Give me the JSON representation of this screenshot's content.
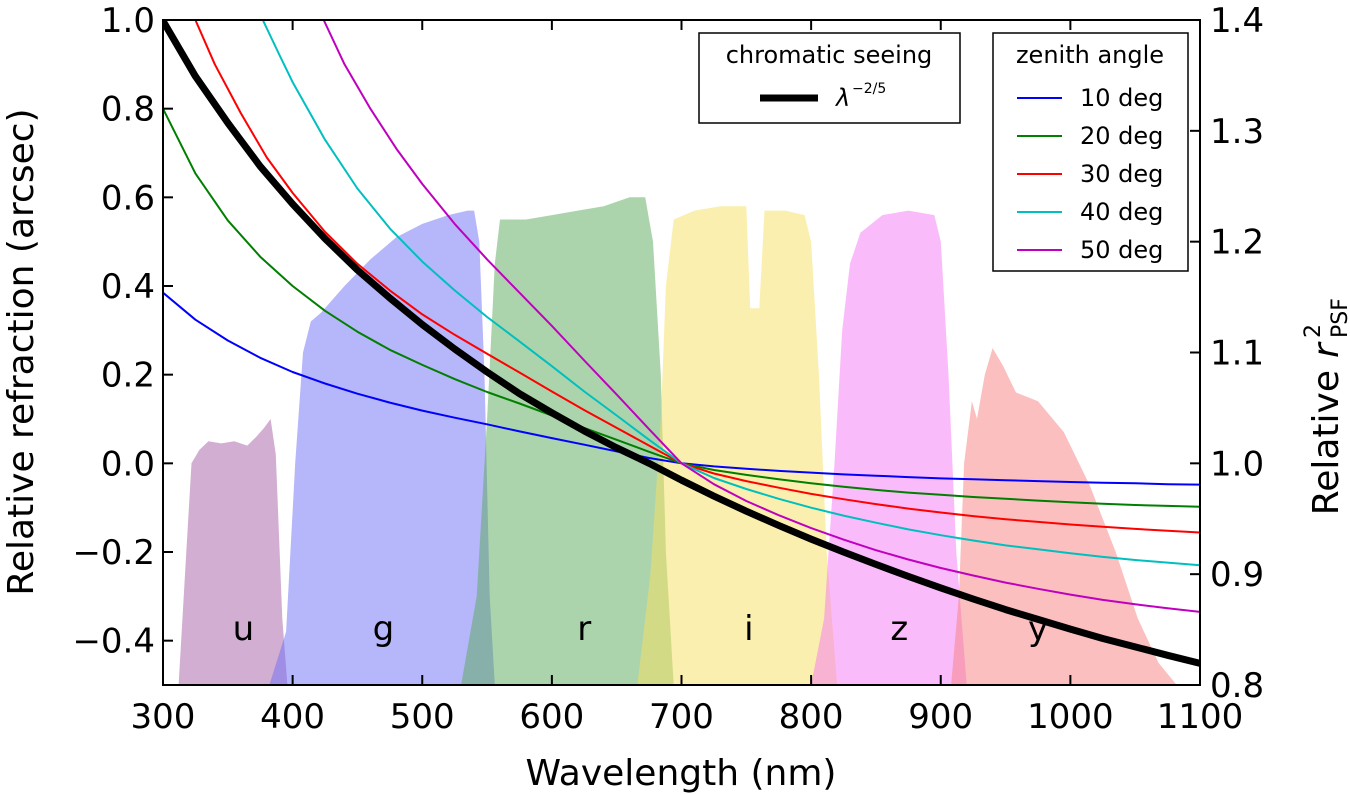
{
  "chart_data": {
    "type": "line",
    "title": "",
    "xlabel": "Wavelength (nm)",
    "ylabel": "Relative refraction (arcsec)",
    "ylabel_right": "Relative r²PSF",
    "ylabel_right_main": "Relative",
    "ylabel_right_r": "r",
    "ylabel_right_sup": "2",
    "ylabel_right_sub": "PSF",
    "xlim": [
      300,
      1100
    ],
    "ylim": [
      -0.5,
      1.0
    ],
    "ylim_right": [
      0.8,
      1.4
    ],
    "x_ticks": [
      300,
      400,
      500,
      600,
      700,
      800,
      900,
      1000,
      1100
    ],
    "y_ticks": [
      {
        "value": 1.0,
        "label": "1.0"
      },
      {
        "value": 0.8,
        "label": "0.8"
      },
      {
        "value": 0.6,
        "label": "0.6"
      },
      {
        "value": 0.4,
        "label": "0.4"
      },
      {
        "value": 0.2,
        "label": "0.2"
      },
      {
        "value": 0.0,
        "label": "0.0"
      },
      {
        "value": -0.2,
        "label": "−0.2"
      },
      {
        "value": -0.4,
        "label": "−0.4"
      }
    ],
    "y_ticks_right": [
      {
        "value": 1.4,
        "label": "1.4"
      },
      {
        "value": 1.3,
        "label": "1.3"
      },
      {
        "value": 1.2,
        "label": "1.2"
      },
      {
        "value": 1.1,
        "label": "1.1"
      },
      {
        "value": 1.0,
        "label": "1.0"
      },
      {
        "value": 0.9,
        "label": "0.9"
      },
      {
        "value": 0.8,
        "label": "0.8"
      }
    ],
    "filter_bands": [
      {
        "name": "u",
        "color": "#a55fa5",
        "label_x": 362,
        "points": [
          [
            312,
            -0.5
          ],
          [
            318,
            -0.2
          ],
          [
            322,
            0.0
          ],
          [
            328,
            0.03
          ],
          [
            335,
            0.05
          ],
          [
            345,
            0.045
          ],
          [
            355,
            0.05
          ],
          [
            365,
            0.04
          ],
          [
            372,
            0.06
          ],
          [
            378,
            0.08
          ],
          [
            383,
            0.1
          ],
          [
            387,
            0.02
          ],
          [
            392,
            -0.35
          ],
          [
            396,
            -0.5
          ]
        ]
      },
      {
        "name": "g",
        "color": "#6e6ef5",
        "label_x": 470,
        "points": [
          [
            382,
            -0.5
          ],
          [
            395,
            -0.38
          ],
          [
            402,
            0.0
          ],
          [
            408,
            0.25
          ],
          [
            414,
            0.32
          ],
          [
            422,
            0.34
          ],
          [
            440,
            0.4
          ],
          [
            460,
            0.46
          ],
          [
            480,
            0.51
          ],
          [
            500,
            0.54
          ],
          [
            520,
            0.56
          ],
          [
            535,
            0.57
          ],
          [
            540,
            0.57
          ],
          [
            544,
            0.5
          ],
          [
            548,
            0.2
          ],
          [
            552,
            -0.3
          ],
          [
            556,
            -0.5
          ]
        ]
      },
      {
        "name": "r",
        "color": "#5aaa5a",
        "label_x": 625,
        "points": [
          [
            530,
            -0.5
          ],
          [
            542,
            -0.3
          ],
          [
            550,
            0.1
          ],
          [
            556,
            0.45
          ],
          [
            560,
            0.55
          ],
          [
            580,
            0.55
          ],
          [
            600,
            0.56
          ],
          [
            620,
            0.57
          ],
          [
            640,
            0.58
          ],
          [
            660,
            0.6
          ],
          [
            672,
            0.6
          ],
          [
            678,
            0.5
          ],
          [
            684,
            0.2
          ],
          [
            688,
            -0.2
          ],
          [
            694,
            -0.5
          ]
        ]
      },
      {
        "name": "i",
        "color": "#f7e05f",
        "label_x": 752,
        "points": [
          [
            666,
            -0.5
          ],
          [
            676,
            -0.25
          ],
          [
            684,
            0.1
          ],
          [
            688,
            0.4
          ],
          [
            694,
            0.55
          ],
          [
            710,
            0.57
          ],
          [
            730,
            0.58
          ],
          [
            750,
            0.58
          ],
          [
            753,
            0.35
          ],
          [
            760,
            0.35
          ],
          [
            764,
            0.57
          ],
          [
            780,
            0.57
          ],
          [
            795,
            0.56
          ],
          [
            800,
            0.5
          ],
          [
            806,
            0.2
          ],
          [
            812,
            -0.2
          ],
          [
            820,
            -0.5
          ]
        ]
      },
      {
        "name": "z",
        "color": "#f577f5",
        "label_x": 868,
        "points": [
          [
            800,
            -0.5
          ],
          [
            810,
            -0.35
          ],
          [
            818,
            0.0
          ],
          [
            824,
            0.3
          ],
          [
            830,
            0.45
          ],
          [
            838,
            0.52
          ],
          [
            855,
            0.56
          ],
          [
            875,
            0.57
          ],
          [
            895,
            0.56
          ],
          [
            900,
            0.5
          ],
          [
            906,
            0.2
          ],
          [
            912,
            -0.2
          ],
          [
            920,
            -0.5
          ]
        ]
      },
      {
        "name": "y",
        "color": "#f77f7f",
        "label_x": 975,
        "points": [
          [
            908,
            -0.5
          ],
          [
            914,
            -0.3
          ],
          [
            918,
            0.0
          ],
          [
            924,
            0.14
          ],
          [
            928,
            0.1
          ],
          [
            934,
            0.2
          ],
          [
            940,
            0.26
          ],
          [
            948,
            0.22
          ],
          [
            958,
            0.16
          ],
          [
            975,
            0.14
          ],
          [
            995,
            0.07
          ],
          [
            1015,
            -0.05
          ],
          [
            1035,
            -0.2
          ],
          [
            1052,
            -0.35
          ],
          [
            1068,
            -0.45
          ],
          [
            1082,
            -0.5
          ]
        ]
      }
    ],
    "series": [
      {
        "name": "10 deg",
        "color": "#0000ff",
        "width": 2,
        "x": [
          300,
          325,
          350,
          375,
          400,
          425,
          450,
          475,
          500,
          525,
          550,
          575,
          600,
          625,
          650,
          675,
          700,
          725,
          750,
          775,
          800,
          825,
          850,
          875,
          900,
          925,
          950,
          975,
          1000,
          1025,
          1050,
          1075,
          1100
        ],
        "y": [
          0.385,
          0.324,
          0.277,
          0.238,
          0.206,
          0.18,
          0.157,
          0.137,
          0.119,
          0.103,
          0.088,
          0.072,
          0.057,
          0.042,
          0.027,
          0.012,
          0.0,
          -0.007,
          -0.012,
          -0.017,
          -0.021,
          -0.025,
          -0.028,
          -0.031,
          -0.034,
          -0.036,
          -0.038,
          -0.04,
          -0.042,
          -0.044,
          -0.045,
          -0.047,
          -0.048
        ]
      },
      {
        "name": "20 deg",
        "color": "#007f00",
        "width": 2,
        "x": [
          300,
          325,
          350,
          375,
          400,
          425,
          450,
          475,
          500,
          525,
          550,
          575,
          600,
          625,
          650,
          675,
          700,
          725,
          750,
          775,
          800,
          825,
          850,
          875,
          900,
          925,
          950,
          975,
          1000,
          1025,
          1050,
          1075,
          1100
        ],
        "y": [
          0.8,
          0.654,
          0.548,
          0.466,
          0.4,
          0.344,
          0.297,
          0.256,
          0.222,
          0.19,
          0.161,
          0.135,
          0.108,
          0.08,
          0.053,
          0.026,
          0.0,
          -0.015,
          -0.026,
          -0.036,
          -0.045,
          -0.053,
          -0.06,
          -0.066,
          -0.071,
          -0.076,
          -0.08,
          -0.084,
          -0.088,
          -0.091,
          -0.094,
          -0.096,
          -0.098
        ]
      },
      {
        "name": "30 deg",
        "color": "#ff0000",
        "width": 2,
        "x": [
          325,
          340,
          360,
          380,
          400,
          425,
          450,
          475,
          500,
          525,
          550,
          575,
          600,
          625,
          650,
          675,
          700,
          725,
          750,
          775,
          800,
          825,
          850,
          875,
          900,
          925,
          950,
          975,
          1000,
          1025,
          1050,
          1075,
          1100
        ],
        "y": [
          1.0,
          0.9,
          0.79,
          0.69,
          0.61,
          0.522,
          0.45,
          0.39,
          0.336,
          0.29,
          0.247,
          0.205,
          0.162,
          0.12,
          0.08,
          0.04,
          0.0,
          -0.023,
          -0.04,
          -0.055,
          -0.069,
          -0.081,
          -0.092,
          -0.102,
          -0.111,
          -0.119,
          -0.126,
          -0.132,
          -0.138,
          -0.143,
          -0.148,
          -0.152,
          -0.156
        ]
      },
      {
        "name": "40 deg",
        "color": "#00bfbf",
        "width": 2,
        "x": [
          377,
          390,
          400,
          425,
          450,
          475,
          500,
          525,
          550,
          575,
          600,
          625,
          650,
          675,
          700,
          725,
          750,
          775,
          800,
          825,
          850,
          875,
          900,
          925,
          950,
          975,
          1000,
          1025,
          1050,
          1075,
          1100
        ],
        "y": [
          1.0,
          0.92,
          0.86,
          0.73,
          0.62,
          0.53,
          0.455,
          0.39,
          0.33,
          0.275,
          0.219,
          0.162,
          0.108,
          0.053,
          0.0,
          -0.033,
          -0.058,
          -0.08,
          -0.1,
          -0.118,
          -0.134,
          -0.149,
          -0.162,
          -0.174,
          -0.185,
          -0.194,
          -0.203,
          -0.211,
          -0.218,
          -0.224,
          -0.23
        ]
      },
      {
        "name": "50 deg",
        "color": "#bf00bf",
        "width": 2,
        "x": [
          424,
          440,
          460,
          480,
          500,
          525,
          550,
          575,
          600,
          625,
          650,
          675,
          700,
          725,
          750,
          775,
          800,
          825,
          850,
          875,
          900,
          925,
          950,
          975,
          1000,
          1025,
          1050,
          1075,
          1100
        ],
        "y": [
          1.0,
          0.9,
          0.8,
          0.71,
          0.63,
          0.54,
          0.46,
          0.385,
          0.31,
          0.232,
          0.155,
          0.077,
          0.0,
          -0.047,
          -0.085,
          -0.117,
          -0.146,
          -0.172,
          -0.196,
          -0.217,
          -0.236,
          -0.253,
          -0.269,
          -0.283,
          -0.296,
          -0.308,
          -0.318,
          -0.327,
          -0.335
        ]
      },
      {
        "name": "λ^-2/5",
        "color": "#000000",
        "width": 7,
        "x": [
          300,
          325,
          350,
          375,
          400,
          425,
          450,
          475,
          500,
          525,
          550,
          575,
          600,
          625,
          650,
          675,
          700,
          725,
          750,
          775,
          800,
          825,
          850,
          875,
          900,
          925,
          950,
          975,
          1000,
          1025,
          1050,
          1075,
          1100
        ],
        "y": [
          0.998,
          0.873,
          0.768,
          0.67,
          0.585,
          0.507,
          0.436,
          0.373,
          0.313,
          0.258,
          0.206,
          0.157,
          0.114,
          0.073,
          0.035,
          0.0,
          -0.038,
          -0.074,
          -0.108,
          -0.14,
          -0.171,
          -0.2,
          -0.228,
          -0.255,
          -0.281,
          -0.306,
          -0.33,
          -0.352,
          -0.374,
          -0.395,
          -0.414,
          -0.433,
          -0.451
        ]
      }
    ],
    "legend_seeing": {
      "title": "chromatic seeing",
      "entry_label": "λ",
      "entry_sup": "−2/5"
    },
    "legend_zenith": {
      "title": "zenith angle",
      "entries": [
        "10 deg",
        "20 deg",
        "30 deg",
        "40 deg",
        "50 deg"
      ]
    }
  }
}
